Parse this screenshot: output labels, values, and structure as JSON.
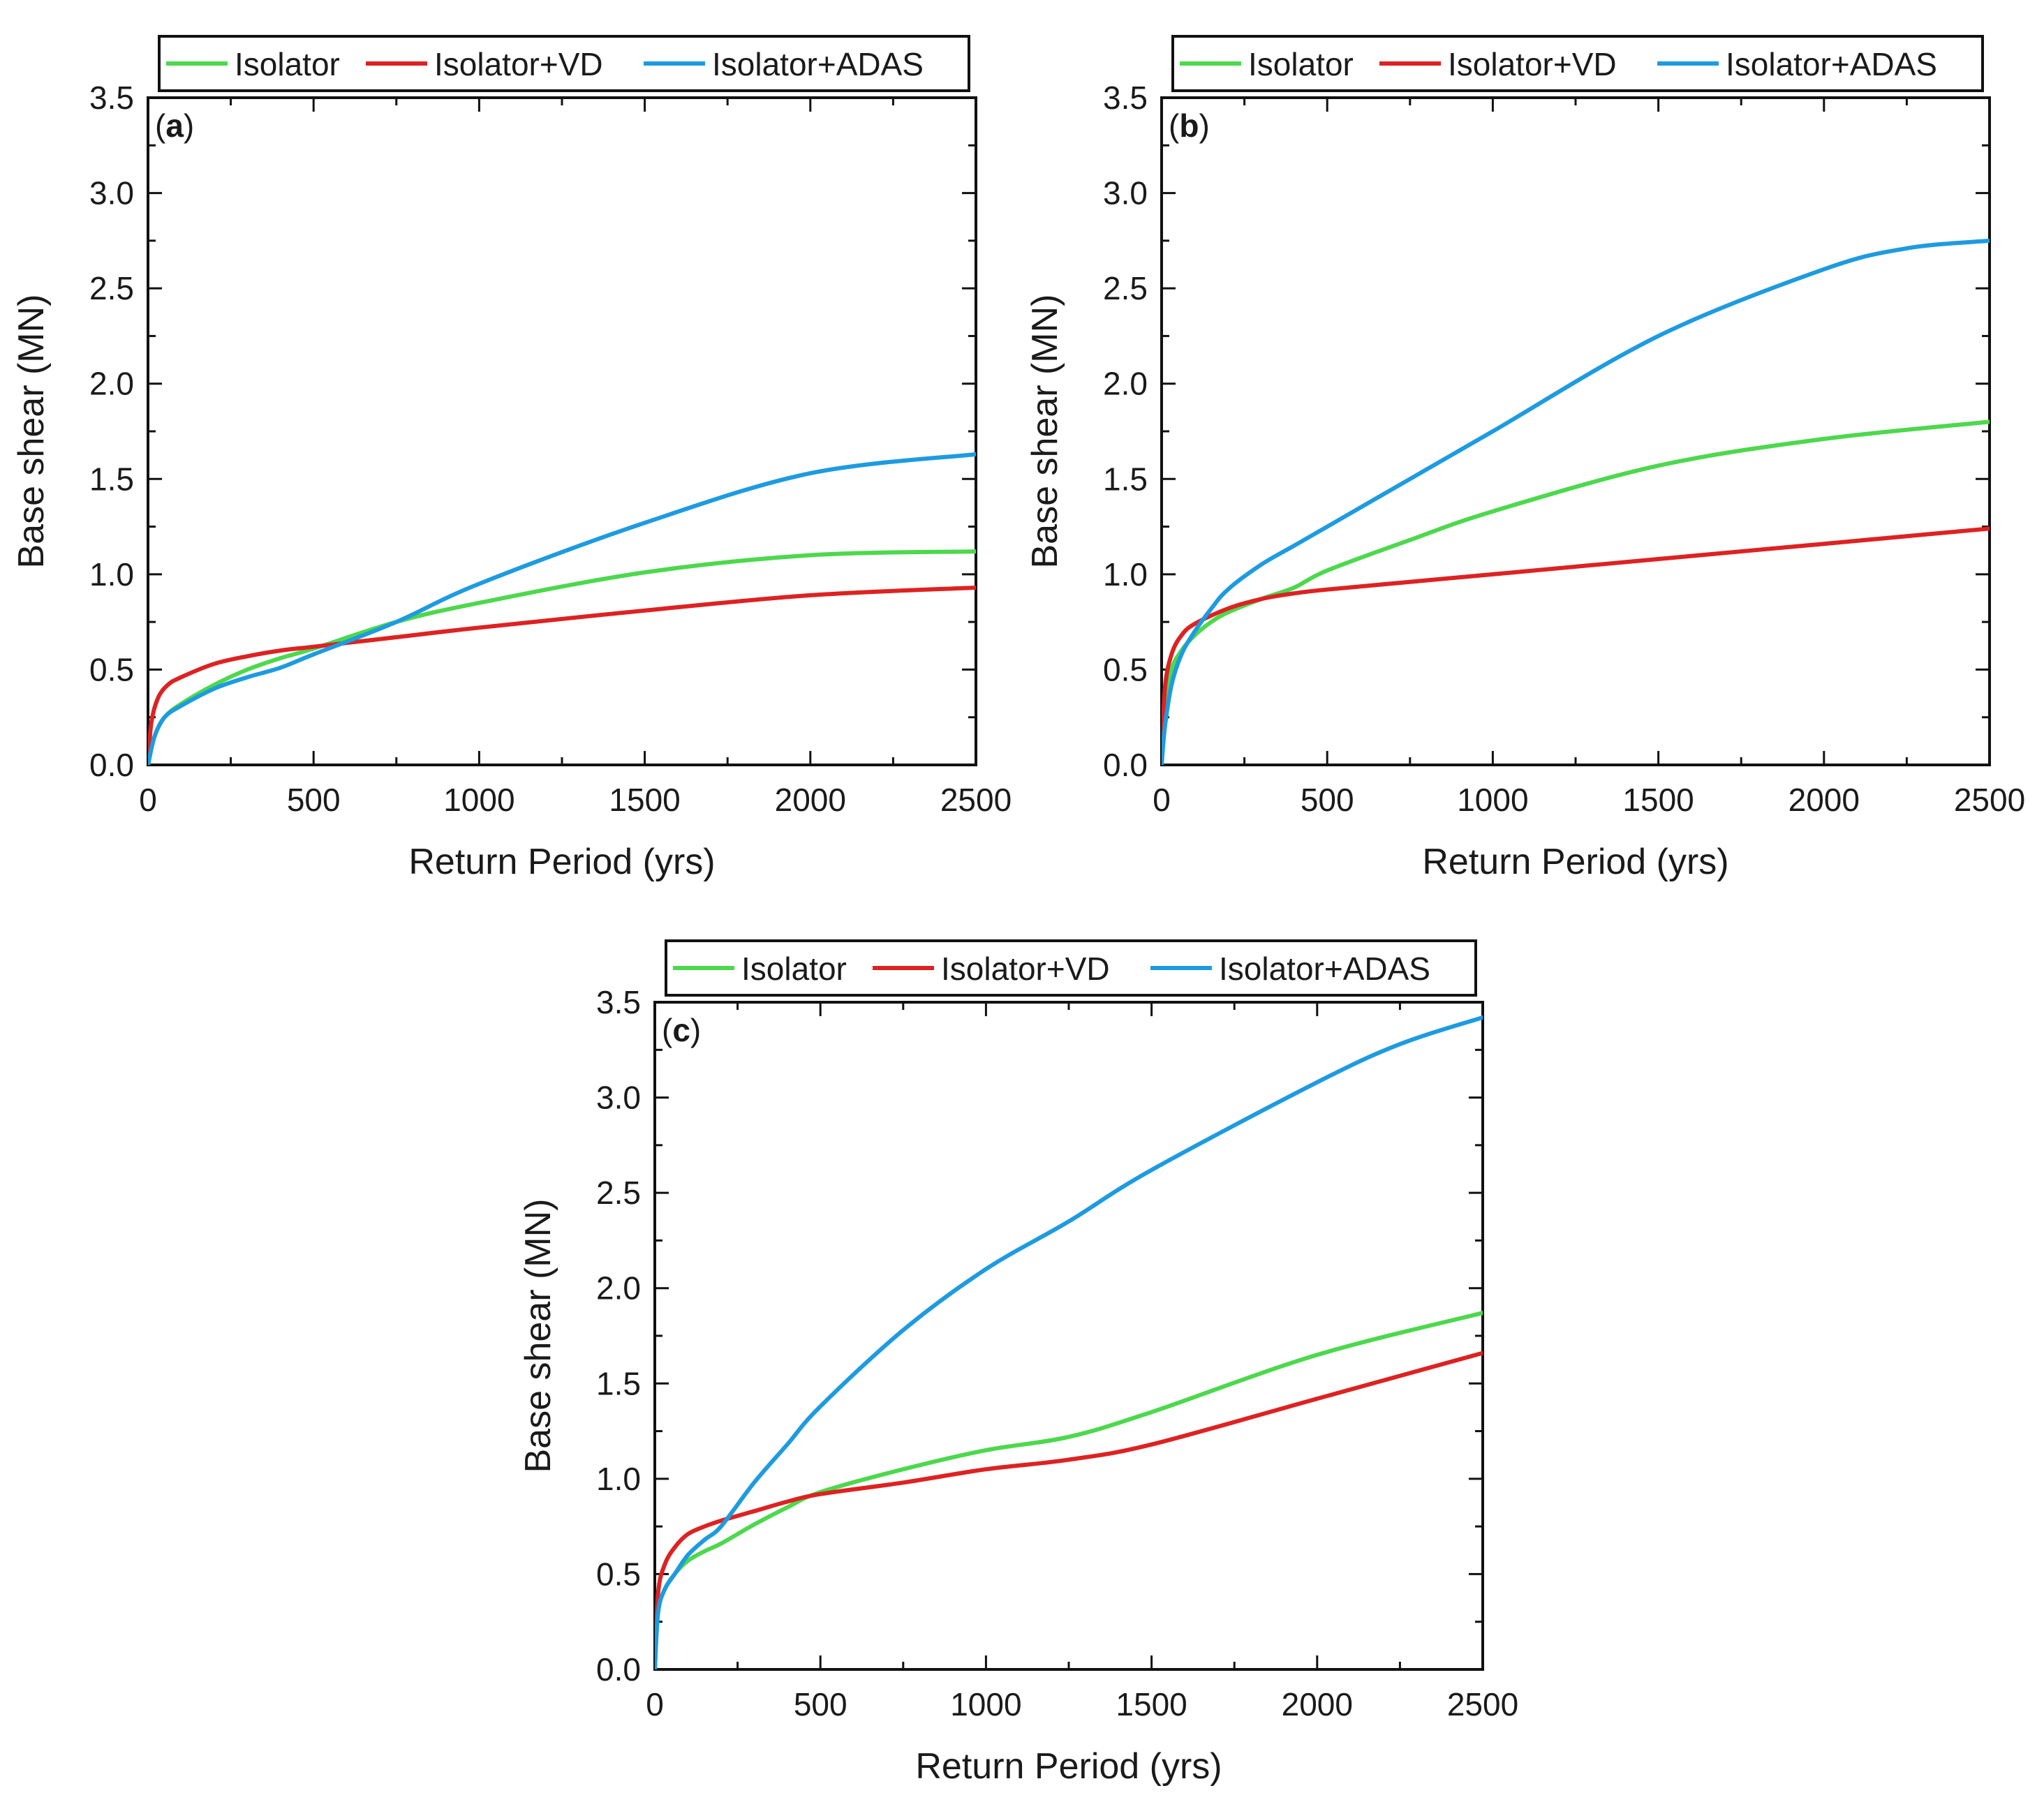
{
  "figure": {
    "panel_count": 3
  },
  "chart_data": [
    {
      "type": "line",
      "panel_label": {
        "open": "(",
        "letter": "a",
        "close": ")"
      },
      "xlabel": "Return Period (yrs)",
      "ylabel": "Base shear (MN)",
      "xlim": [
        0,
        2500
      ],
      "ylim": [
        0,
        3.5
      ],
      "xticks": [
        "0",
        "500",
        "1000",
        "1500",
        "2000",
        "2500"
      ],
      "yticks": [
        "0.0",
        "0.5",
        "1.0",
        "1.5",
        "2.0",
        "2.5",
        "3.0",
        "3.5"
      ],
      "legend": {
        "placement": "top",
        "entries": [
          "Isolator",
          "Isolator+VD",
          "Isolator+ADAS"
        ]
      },
      "series": [
        {
          "name": "Isolator",
          "color": "#4dd84d",
          "x": [
            0,
            20,
            50,
            100,
            200,
            300,
            400,
            500,
            750,
            1000,
            1500,
            2000,
            2500
          ],
          "y": [
            0,
            0.15,
            0.25,
            0.32,
            0.42,
            0.5,
            0.56,
            0.61,
            0.75,
            0.85,
            1.01,
            1.1,
            1.12
          ]
        },
        {
          "name": "Isolator+VD",
          "color": "#dd2222",
          "x": [
            0,
            10,
            30,
            60,
            100,
            200,
            300,
            400,
            500,
            750,
            1000,
            1500,
            2000,
            2500
          ],
          "y": [
            0,
            0.22,
            0.35,
            0.42,
            0.46,
            0.53,
            0.57,
            0.6,
            0.62,
            0.67,
            0.72,
            0.81,
            0.89,
            0.93
          ]
        },
        {
          "name": "Isolator+ADAS",
          "color": "#1e9be0",
          "x": [
            0,
            20,
            50,
            100,
            200,
            300,
            400,
            500,
            750,
            1000,
            1500,
            2000,
            2500
          ],
          "y": [
            0,
            0.15,
            0.25,
            0.31,
            0.4,
            0.46,
            0.51,
            0.58,
            0.75,
            0.95,
            1.27,
            1.53,
            1.63
          ]
        }
      ]
    },
    {
      "type": "line",
      "panel_label": {
        "open": "(",
        "letter": "b",
        "close": ")"
      },
      "xlabel": "Return Period (yrs)",
      "ylabel": "Base shear (MN)",
      "xlim": [
        0,
        2500
      ],
      "ylim": [
        0,
        3.5
      ],
      "xticks": [
        "0",
        "500",
        "1000",
        "1500",
        "2000",
        "2500"
      ],
      "yticks": [
        "0.0",
        "0.5",
        "1.0",
        "1.5",
        "2.0",
        "2.5",
        "3.0",
        "3.5"
      ],
      "legend": {
        "placement": "top",
        "entries": [
          "Isolator",
          "Isolator+VD",
          "Isolator+ADAS"
        ]
      },
      "series": [
        {
          "name": "Isolator",
          "color": "#4dd84d",
          "x": [
            0,
            10,
            30,
            60,
            100,
            150,
            200,
            300,
            400,
            500,
            750,
            1000,
            1500,
            2000,
            2500
          ],
          "y": [
            0,
            0.3,
            0.5,
            0.6,
            0.68,
            0.75,
            0.8,
            0.87,
            0.93,
            1.02,
            1.18,
            1.33,
            1.57,
            1.71,
            1.8
          ]
        },
        {
          "name": "Isolator+VD",
          "color": "#dd2222",
          "x": [
            0,
            10,
            30,
            60,
            100,
            200,
            300,
            400,
            500,
            750,
            1000,
            1500,
            2000,
            2500
          ],
          "y": [
            0,
            0.4,
            0.58,
            0.68,
            0.74,
            0.82,
            0.87,
            0.9,
            0.92,
            0.96,
            1.0,
            1.08,
            1.16,
            1.24
          ]
        },
        {
          "name": "Isolator+ADAS",
          "color": "#1e9be0",
          "x": [
            0,
            10,
            30,
            60,
            100,
            150,
            200,
            300,
            400,
            500,
            750,
            1000,
            1500,
            2000,
            2250,
            2500
          ],
          "y": [
            0,
            0.2,
            0.42,
            0.58,
            0.7,
            0.82,
            0.92,
            1.05,
            1.15,
            1.25,
            1.5,
            1.75,
            2.25,
            2.6,
            2.71,
            2.75
          ]
        }
      ]
    },
    {
      "type": "line",
      "panel_label": {
        "open": "(",
        "letter": "c",
        "close": ")"
      },
      "xlabel": "Return Period (yrs)",
      "ylabel": "Base shear (MN)",
      "xlim": [
        0,
        2500
      ],
      "ylim": [
        0,
        3.5
      ],
      "xticks": [
        "0",
        "500",
        "1000",
        "1500",
        "2000",
        "2500"
      ],
      "yticks": [
        "0.0",
        "0.5",
        "1.0",
        "1.5",
        "2.0",
        "2.5",
        "3.0",
        "3.5"
      ],
      "legend": {
        "placement": "top",
        "entries": [
          "Isolator",
          "Isolator+VD",
          "Isolator+ADAS"
        ]
      },
      "series": [
        {
          "name": "Isolator",
          "color": "#4dd84d",
          "x": [
            0,
            10,
            30,
            60,
            100,
            150,
            200,
            300,
            400,
            500,
            750,
            1000,
            1250,
            1500,
            2000,
            2500
          ],
          "y": [
            0,
            0.3,
            0.42,
            0.5,
            0.57,
            0.62,
            0.66,
            0.76,
            0.85,
            0.93,
            1.05,
            1.15,
            1.22,
            1.35,
            1.65,
            1.87
          ]
        },
        {
          "name": "Isolator+VD",
          "color": "#dd2222",
          "x": [
            0,
            10,
            30,
            60,
            100,
            150,
            200,
            300,
            400,
            500,
            750,
            1000,
            1250,
            1500,
            2000,
            2500
          ],
          "y": [
            0,
            0.4,
            0.55,
            0.64,
            0.71,
            0.75,
            0.78,
            0.83,
            0.88,
            0.92,
            0.98,
            1.05,
            1.1,
            1.18,
            1.42,
            1.66
          ]
        },
        {
          "name": "Isolator+ADAS",
          "color": "#1e9be0",
          "x": [
            0,
            10,
            30,
            60,
            100,
            150,
            200,
            300,
            400,
            500,
            750,
            1000,
            1250,
            1500,
            2000,
            2250,
            2500
          ],
          "y": [
            0,
            0.3,
            0.42,
            0.5,
            0.6,
            0.68,
            0.75,
            0.98,
            1.18,
            1.38,
            1.78,
            2.1,
            2.35,
            2.62,
            3.08,
            3.28,
            3.42
          ]
        }
      ]
    }
  ]
}
